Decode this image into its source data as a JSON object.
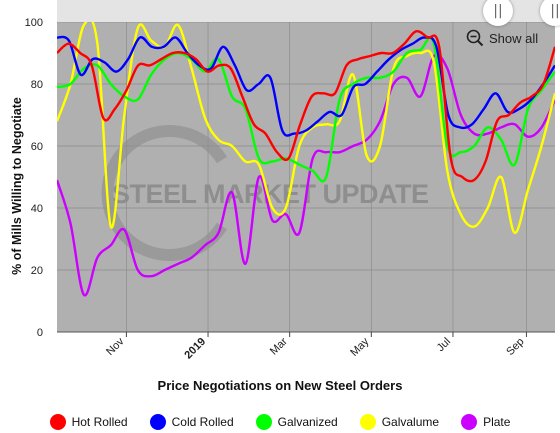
{
  "chart_data": {
    "type": "line",
    "xlabel": "Price Negotiations on New Steel Orders",
    "ylabel": "% of Mills Willing to Negotiate",
    "ylim": [
      0,
      100
    ],
    "y_ticks": [
      0,
      20,
      40,
      60,
      80,
      100
    ],
    "x_ticks": [
      {
        "label": "Nov",
        "pos": 8.5,
        "bold": false
      },
      {
        "label": "2019",
        "pos": 18.5,
        "bold": true
      },
      {
        "label": "Mar",
        "pos": 28.5,
        "bold": false
      },
      {
        "label": "May",
        "pos": 38.5,
        "bold": false
      },
      {
        "label": "Jul",
        "pos": 48.5,
        "bold": false
      },
      {
        "label": "Sep",
        "pos": 57.5,
        "bold": false
      }
    ],
    "x_range": [
      0,
      61
    ],
    "grid": true,
    "legend_position": "bottom",
    "watermark": "STEEL MARKET UPDATE",
    "background_color": "#b0b0b0",
    "series": [
      {
        "name": "Hot Rolled",
        "color": "#ff0000",
        "values": [
          90,
          93,
          90,
          86,
          69,
          72,
          78,
          86,
          86,
          88,
          90,
          90,
          88,
          84,
          86,
          85,
          76,
          67,
          64,
          58,
          56,
          67,
          76,
          77,
          77,
          86,
          88,
          89,
          90,
          90,
          93,
          97,
          95,
          92,
          56,
          50,
          49,
          55,
          68,
          70,
          74,
          76,
          80,
          92
        ]
      },
      {
        "name": "Cold Rolled",
        "color": "#0000ff",
        "values": [
          95,
          94,
          83,
          88,
          87,
          84,
          88,
          95,
          92,
          92,
          95,
          90,
          86,
          85,
          92,
          86,
          78,
          80,
          82,
          65,
          64,
          65,
          68,
          71,
          70,
          79,
          80,
          84,
          88,
          91,
          93,
          95,
          92,
          70,
          66,
          67,
          72,
          77,
          71,
          72,
          75,
          80,
          86
        ]
      },
      {
        "name": "Galvanized",
        "color": "#00ff00",
        "values": [
          79,
          80,
          85,
          86,
          80,
          76,
          75,
          83,
          88,
          90,
          88,
          84,
          88,
          76,
          72,
          56,
          55,
          56,
          54,
          52,
          50,
          75,
          80,
          82,
          82,
          84,
          90,
          91,
          93,
          60,
          58,
          60,
          66,
          62,
          54,
          72,
          78,
          84
        ]
      },
      {
        "name": "Galvalume",
        "color": "#ffff00",
        "values": [
          68,
          80,
          99,
          93,
          34,
          70,
          98,
          94,
          92,
          99,
          85,
          69,
          62,
          60,
          55,
          54,
          40,
          40,
          60,
          66,
          67,
          68,
          83,
          57,
          60,
          85,
          89,
          90,
          87,
          52,
          38,
          34,
          40,
          50,
          32,
          46,
          60,
          77
        ]
      },
      {
        "name": "Plate",
        "color": "#cc00ff",
        "values": [
          49,
          35,
          12,
          24,
          28,
          33,
          20,
          18,
          20,
          22,
          24,
          28,
          32,
          45,
          22,
          50,
          36,
          38,
          32,
          56,
          58,
          58,
          60,
          62,
          68,
          80,
          82,
          76,
          89,
          85,
          70,
          64,
          64,
          66,
          67,
          63,
          66,
          75
        ]
      }
    ]
  },
  "controls": {
    "show_all_label": "Show all",
    "handle_glyph": "||"
  }
}
